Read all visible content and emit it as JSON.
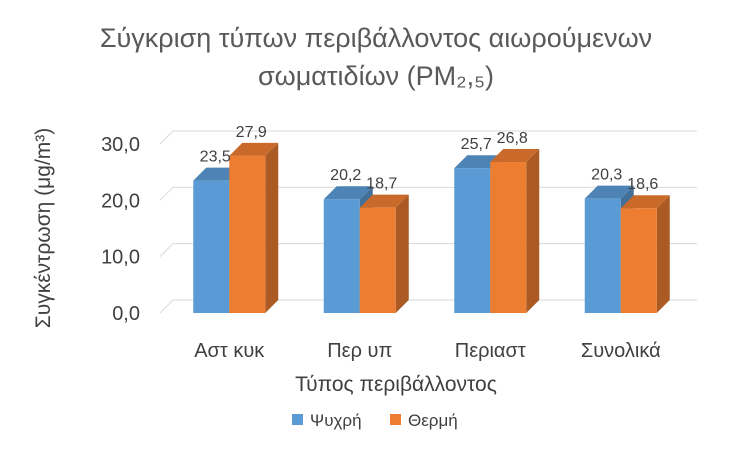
{
  "chart_data": {
    "type": "bar",
    "style": "3d-clustered-column",
    "title_line1": "Σύγκριση τύπων περιβάλλοντος αιωρούμενων",
    "title_line2": "σωματιδίων (PM₂,₅)",
    "xlabel": "Τύπος περιβάλλοντος",
    "ylabel": "Συγκέντρωση (μg/m³)",
    "categories": [
      "Αστ κυκ",
      "Περ υπ",
      "Περιαστ",
      "Συνολικά"
    ],
    "series": [
      {
        "name": "Ψυχρή",
        "color": "#5b9bd5",
        "values": [
          23.5,
          20.2,
          25.7,
          20.3
        ],
        "labels": [
          "23,5",
          "20,2",
          "25,7",
          "20,3"
        ]
      },
      {
        "name": "Θερμή",
        "color": "#ed7d31",
        "values": [
          27.9,
          18.7,
          26.8,
          18.6
        ],
        "labels": [
          "27,9",
          "18,7",
          "26,8",
          "18,6"
        ]
      }
    ],
    "y_ticks": [
      0,
      10,
      20,
      30
    ],
    "y_tick_labels": [
      "0,0",
      "10,0",
      "20,0",
      "30,0"
    ],
    "ylim": [
      0,
      30
    ],
    "grid": true,
    "legend_position": "bottom"
  }
}
